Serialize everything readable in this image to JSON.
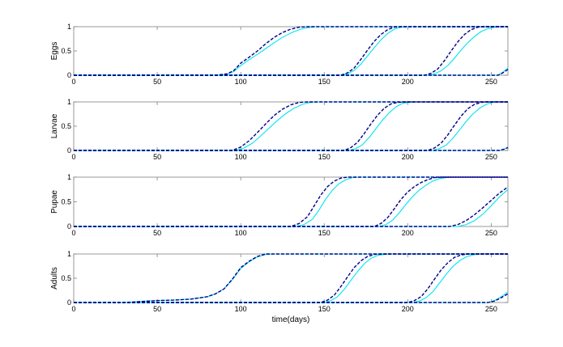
{
  "chart_data": [
    {
      "type": "line",
      "ylabel": "Eggs",
      "xlabel": "",
      "xlim": [
        0,
        260
      ],
      "ylim": [
        0,
        1
      ],
      "xticks": [
        0,
        50,
        100,
        150,
        200,
        250
      ],
      "yticks": [
        0,
        0.5,
        1
      ],
      "grid": false,
      "series": [
        {
          "style": "dashed",
          "color": "#00008B",
          "x": [
            0,
            85,
            92,
            96,
            100,
            105,
            110,
            115,
            120,
            125,
            130,
            135,
            140,
            260
          ],
          "y": [
            0,
            0,
            0.03,
            0.1,
            0.25,
            0.37,
            0.5,
            0.65,
            0.78,
            0.88,
            0.95,
            0.99,
            1,
            1
          ]
        },
        {
          "style": "solid",
          "color": "#00E5EE",
          "x": [
            0,
            85,
            92,
            96,
            100,
            105,
            110,
            115,
            120,
            125,
            130,
            135,
            140,
            145,
            260
          ],
          "y": [
            0,
            0,
            0.02,
            0.08,
            0.2,
            0.32,
            0.43,
            0.55,
            0.67,
            0.78,
            0.87,
            0.94,
            0.98,
            1,
            1
          ]
        },
        {
          "style": "dashed",
          "color": "#00008B",
          "x": [
            0,
            160,
            164,
            168,
            172,
            176,
            180,
            184,
            188,
            192,
            196,
            260
          ],
          "y": [
            0,
            0,
            0.05,
            0.15,
            0.33,
            0.52,
            0.7,
            0.84,
            0.94,
            0.99,
            1,
            1
          ]
        },
        {
          "style": "solid",
          "color": "#00E5EE",
          "x": [
            0,
            160,
            164,
            168,
            172,
            176,
            180,
            184,
            188,
            192,
            196,
            200,
            260
          ],
          "y": [
            0,
            0,
            0.03,
            0.1,
            0.23,
            0.4,
            0.57,
            0.73,
            0.86,
            0.95,
            0.99,
            1,
            1
          ]
        },
        {
          "style": "dashed",
          "color": "#00008B",
          "x": [
            0,
            210,
            214,
            218,
            222,
            226,
            230,
            234,
            238,
            242,
            246,
            260
          ],
          "y": [
            0,
            0,
            0.04,
            0.13,
            0.3,
            0.5,
            0.69,
            0.84,
            0.94,
            0.99,
            1,
            1
          ]
        },
        {
          "style": "solid",
          "color": "#00E5EE",
          "x": [
            0,
            212,
            216,
            220,
            224,
            228,
            232,
            236,
            240,
            244,
            248,
            252,
            256,
            260
          ],
          "y": [
            0,
            0,
            0.03,
            0.09,
            0.2,
            0.35,
            0.52,
            0.67,
            0.8,
            0.9,
            0.96,
            0.99,
            1,
            1
          ]
        },
        {
          "style": "solid",
          "color": "#00E5EE",
          "x": [
            0,
            254,
            257,
            260
          ],
          "y": [
            0,
            0,
            0.06,
            0.15
          ]
        },
        {
          "style": "dashed",
          "color": "#00008B",
          "x": [
            0,
            254,
            257,
            260
          ],
          "y": [
            0,
            0,
            0.05,
            0.12
          ]
        }
      ]
    },
    {
      "type": "line",
      "ylabel": "Larvae",
      "xlabel": "",
      "xlim": [
        0,
        260
      ],
      "ylim": [
        0,
        1
      ],
      "xticks": [
        0,
        50,
        100,
        150,
        200,
        250
      ],
      "yticks": [
        0,
        0.5,
        1
      ],
      "grid": false,
      "series": [
        {
          "style": "dashed",
          "color": "#00008B",
          "x": [
            0,
            95,
            100,
            105,
            110,
            115,
            120,
            125,
            130,
            135,
            140,
            145,
            260
          ],
          "y": [
            0,
            0,
            0.07,
            0.2,
            0.37,
            0.55,
            0.72,
            0.85,
            0.94,
            0.99,
            1,
            1,
            1
          ]
        },
        {
          "style": "solid",
          "color": "#00E5EE",
          "x": [
            0,
            97,
            102,
            107,
            112,
            117,
            122,
            127,
            132,
            137,
            142,
            147,
            152,
            260
          ],
          "y": [
            0,
            0,
            0.05,
            0.15,
            0.3,
            0.46,
            0.62,
            0.76,
            0.87,
            0.95,
            0.99,
            1,
            1,
            1
          ]
        },
        {
          "style": "dashed",
          "color": "#00008B",
          "x": [
            0,
            162,
            166,
            170,
            174,
            178,
            182,
            186,
            190,
            194,
            198,
            260
          ],
          "y": [
            0,
            0,
            0.06,
            0.17,
            0.35,
            0.55,
            0.73,
            0.87,
            0.96,
            0.99,
            1,
            1
          ]
        },
        {
          "style": "solid",
          "color": "#00E5EE",
          "x": [
            0,
            165,
            169,
            173,
            177,
            181,
            185,
            189,
            193,
            197,
            201,
            205,
            260
          ],
          "y": [
            0,
            0,
            0.04,
            0.12,
            0.27,
            0.45,
            0.63,
            0.78,
            0.9,
            0.97,
            0.99,
            1,
            1
          ]
        },
        {
          "style": "dashed",
          "color": "#00008B",
          "x": [
            0,
            212,
            216,
            220,
            224,
            228,
            232,
            236,
            240,
            244,
            248,
            260
          ],
          "y": [
            0,
            0,
            0.05,
            0.15,
            0.32,
            0.52,
            0.71,
            0.86,
            0.95,
            0.99,
            1,
            1
          ]
        },
        {
          "style": "solid",
          "color": "#00E5EE",
          "x": [
            0,
            215,
            219,
            223,
            227,
            231,
            235,
            239,
            243,
            247,
            251,
            255,
            260
          ],
          "y": [
            0,
            0,
            0.04,
            0.11,
            0.25,
            0.42,
            0.6,
            0.75,
            0.87,
            0.95,
            0.99,
            1,
            1
          ]
        },
        {
          "style": "solid",
          "color": "#00E5EE",
          "x": [
            0,
            255,
            258,
            260
          ],
          "y": [
            0,
            0,
            0.03,
            0.07
          ]
        },
        {
          "style": "dashed",
          "color": "#00008B",
          "x": [
            0,
            255,
            258,
            260
          ],
          "y": [
            0,
            0,
            0.03,
            0.06
          ]
        }
      ]
    },
    {
      "type": "line",
      "ylabel": "Pupae",
      "xlabel": "",
      "xlim": [
        0,
        260
      ],
      "ylim": [
        0,
        1
      ],
      "xticks": [
        0,
        50,
        100,
        150,
        200,
        250
      ],
      "yticks": [
        0,
        0.5,
        1
      ],
      "grid": false,
      "series": [
        {
          "style": "dashed",
          "color": "#00008B",
          "x": [
            0,
            130,
            135,
            140,
            144,
            148,
            152,
            156,
            160,
            164,
            168,
            260
          ],
          "y": [
            0,
            0,
            0.06,
            0.2,
            0.42,
            0.64,
            0.81,
            0.92,
            0.98,
            1,
            1,
            1
          ]
        },
        {
          "style": "solid",
          "color": "#00E5EE",
          "x": [
            0,
            133,
            138,
            143,
            147,
            151,
            155,
            159,
            163,
            167,
            171,
            175,
            260
          ],
          "y": [
            0,
            0,
            0.04,
            0.15,
            0.34,
            0.56,
            0.74,
            0.87,
            0.95,
            0.99,
            1,
            1,
            1
          ]
        },
        {
          "style": "dashed",
          "color": "#00008B",
          "x": [
            0,
            180,
            184,
            188,
            192,
            196,
            200,
            204,
            208,
            212,
            216,
            220,
            224,
            260
          ],
          "y": [
            0,
            0,
            0.06,
            0.18,
            0.36,
            0.55,
            0.7,
            0.81,
            0.89,
            0.95,
            0.99,
            1,
            1,
            1
          ]
        },
        {
          "style": "solid",
          "color": "#00E5EE",
          "x": [
            0,
            183,
            187,
            191,
            195,
            199,
            203,
            207,
            211,
            215,
            219,
            223,
            227,
            231,
            260
          ],
          "y": [
            0,
            0,
            0.04,
            0.13,
            0.28,
            0.45,
            0.61,
            0.74,
            0.84,
            0.92,
            0.97,
            0.99,
            1,
            1,
            1
          ]
        },
        {
          "style": "dashed",
          "color": "#00008B",
          "x": [
            0,
            225,
            230,
            235,
            240,
            245,
            250,
            255,
            260
          ],
          "y": [
            0,
            0,
            0.04,
            0.12,
            0.24,
            0.38,
            0.53,
            0.68,
            0.8
          ]
        },
        {
          "style": "solid",
          "color": "#00E5EE",
          "x": [
            0,
            230,
            235,
            240,
            245,
            250,
            255,
            260
          ],
          "y": [
            0,
            0,
            0.04,
            0.12,
            0.25,
            0.42,
            0.6,
            0.75
          ]
        }
      ]
    },
    {
      "type": "line",
      "ylabel": "Adults",
      "xlabel": "time(days)",
      "xlim": [
        0,
        260
      ],
      "ylim": [
        0,
        1
      ],
      "xticks": [
        0,
        50,
        100,
        150,
        200,
        250
      ],
      "yticks": [
        0,
        0.5,
        1
      ],
      "grid": false,
      "series": [
        {
          "style": "dashed",
          "color": "#00008B",
          "x": [
            0,
            30,
            40,
            50,
            60,
            70,
            80,
            85,
            90,
            95,
            100,
            105,
            110,
            115,
            120,
            260
          ],
          "y": [
            0,
            0,
            0.02,
            0.04,
            0.05,
            0.07,
            0.12,
            0.18,
            0.28,
            0.48,
            0.72,
            0.85,
            0.95,
            1,
            1,
            1
          ]
        },
        {
          "style": "solid",
          "color": "#00E5EE",
          "x": [
            0,
            30,
            40,
            50,
            60,
            70,
            80,
            85,
            90,
            95,
            100,
            105,
            110,
            115,
            120,
            260
          ],
          "y": [
            0,
            0,
            0.02,
            0.04,
            0.05,
            0.07,
            0.12,
            0.18,
            0.28,
            0.47,
            0.7,
            0.84,
            0.94,
            0.99,
            1,
            1
          ]
        },
        {
          "style": "dashed",
          "color": "#00008B",
          "x": [
            0,
            148,
            152,
            156,
            160,
            164,
            168,
            172,
            176,
            180,
            184,
            260
          ],
          "y": [
            0,
            0,
            0.05,
            0.15,
            0.33,
            0.53,
            0.72,
            0.86,
            0.95,
            0.99,
            1,
            1
          ]
        },
        {
          "style": "solid",
          "color": "#00E5EE",
          "x": [
            0,
            150,
            154,
            158,
            162,
            166,
            170,
            174,
            178,
            182,
            186,
            190,
            260
          ],
          "y": [
            0,
            0,
            0.04,
            0.12,
            0.27,
            0.46,
            0.64,
            0.8,
            0.91,
            0.97,
            0.99,
            1,
            1
          ]
        },
        {
          "style": "dashed",
          "color": "#00008B",
          "x": [
            0,
            200,
            204,
            208,
            212,
            216,
            220,
            224,
            228,
            232,
            236,
            240,
            260
          ],
          "y": [
            0,
            0,
            0.04,
            0.12,
            0.28,
            0.48,
            0.67,
            0.82,
            0.93,
            0.98,
            1,
            1,
            1
          ]
        },
        {
          "style": "solid",
          "color": "#00E5EE",
          "x": [
            0,
            203,
            207,
            211,
            215,
            219,
            223,
            227,
            231,
            235,
            239,
            243,
            247,
            260
          ],
          "y": [
            0,
            0,
            0.03,
            0.1,
            0.22,
            0.4,
            0.58,
            0.74,
            0.86,
            0.94,
            0.98,
            1,
            1,
            1
          ]
        },
        {
          "style": "solid",
          "color": "#00E5EE",
          "x": [
            0,
            248,
            252,
            256,
            260
          ],
          "y": [
            0,
            0,
            0.04,
            0.12,
            0.22
          ]
        },
        {
          "style": "dashed",
          "color": "#00008B",
          "x": [
            0,
            248,
            252,
            256,
            260
          ],
          "y": [
            0,
            0,
            0.03,
            0.1,
            0.18
          ]
        }
      ]
    }
  ]
}
